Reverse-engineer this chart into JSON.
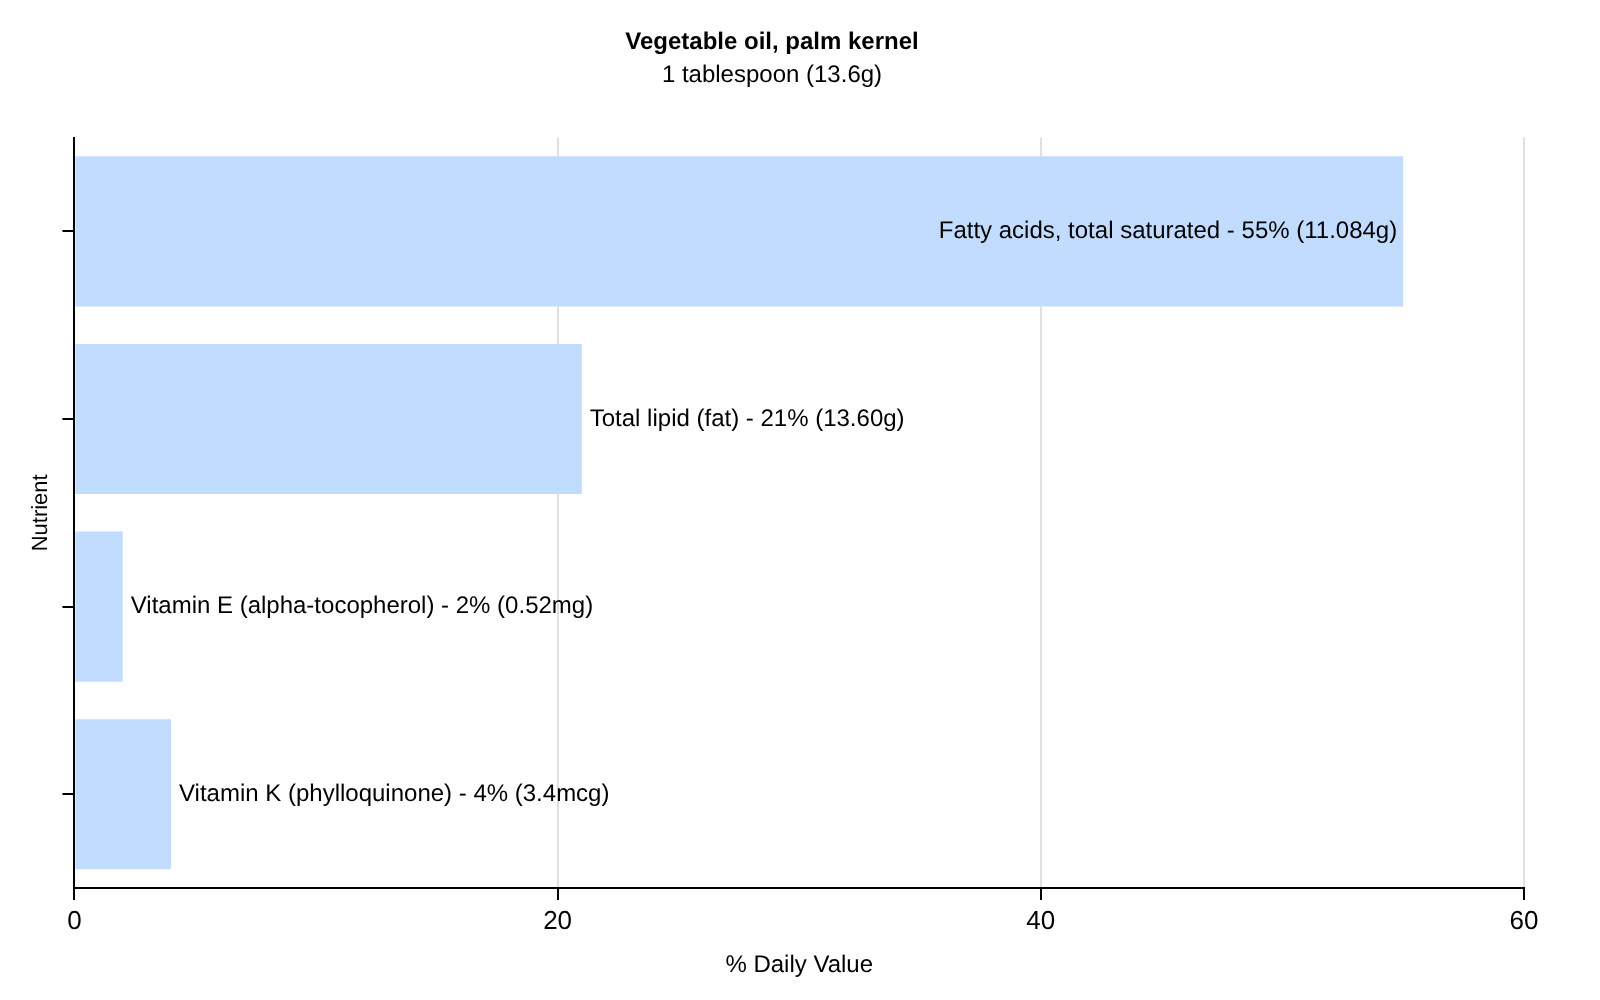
{
  "chart_data": {
    "type": "bar",
    "orientation": "horizontal",
    "title": "Vegetable oil, palm kernel",
    "subtitle": "1 tablespoon (13.6g)",
    "xlabel": "% Daily Value",
    "ylabel": "Nutrient",
    "categories": [
      "Fatty acids, total saturated -",
      "Total lipid (fat) -",
      "Vitamin E (alpha-tocopherol) -",
      "Vitamin K (phylloquinone) -"
    ],
    "values": [
      55,
      21,
      2,
      4
    ],
    "value_labels": [
      "55% (11.084g)",
      "21% (13.60g)",
      "2% (0.52mg)",
      "4% (3.4mcg)"
    ],
    "color": "#c2dcff",
    "xlim": [
      0,
      60
    ],
    "xticks": [
      0,
      20,
      40,
      60
    ],
    "grid": "x",
    "tick_labels": "x",
    "legend": false
  }
}
